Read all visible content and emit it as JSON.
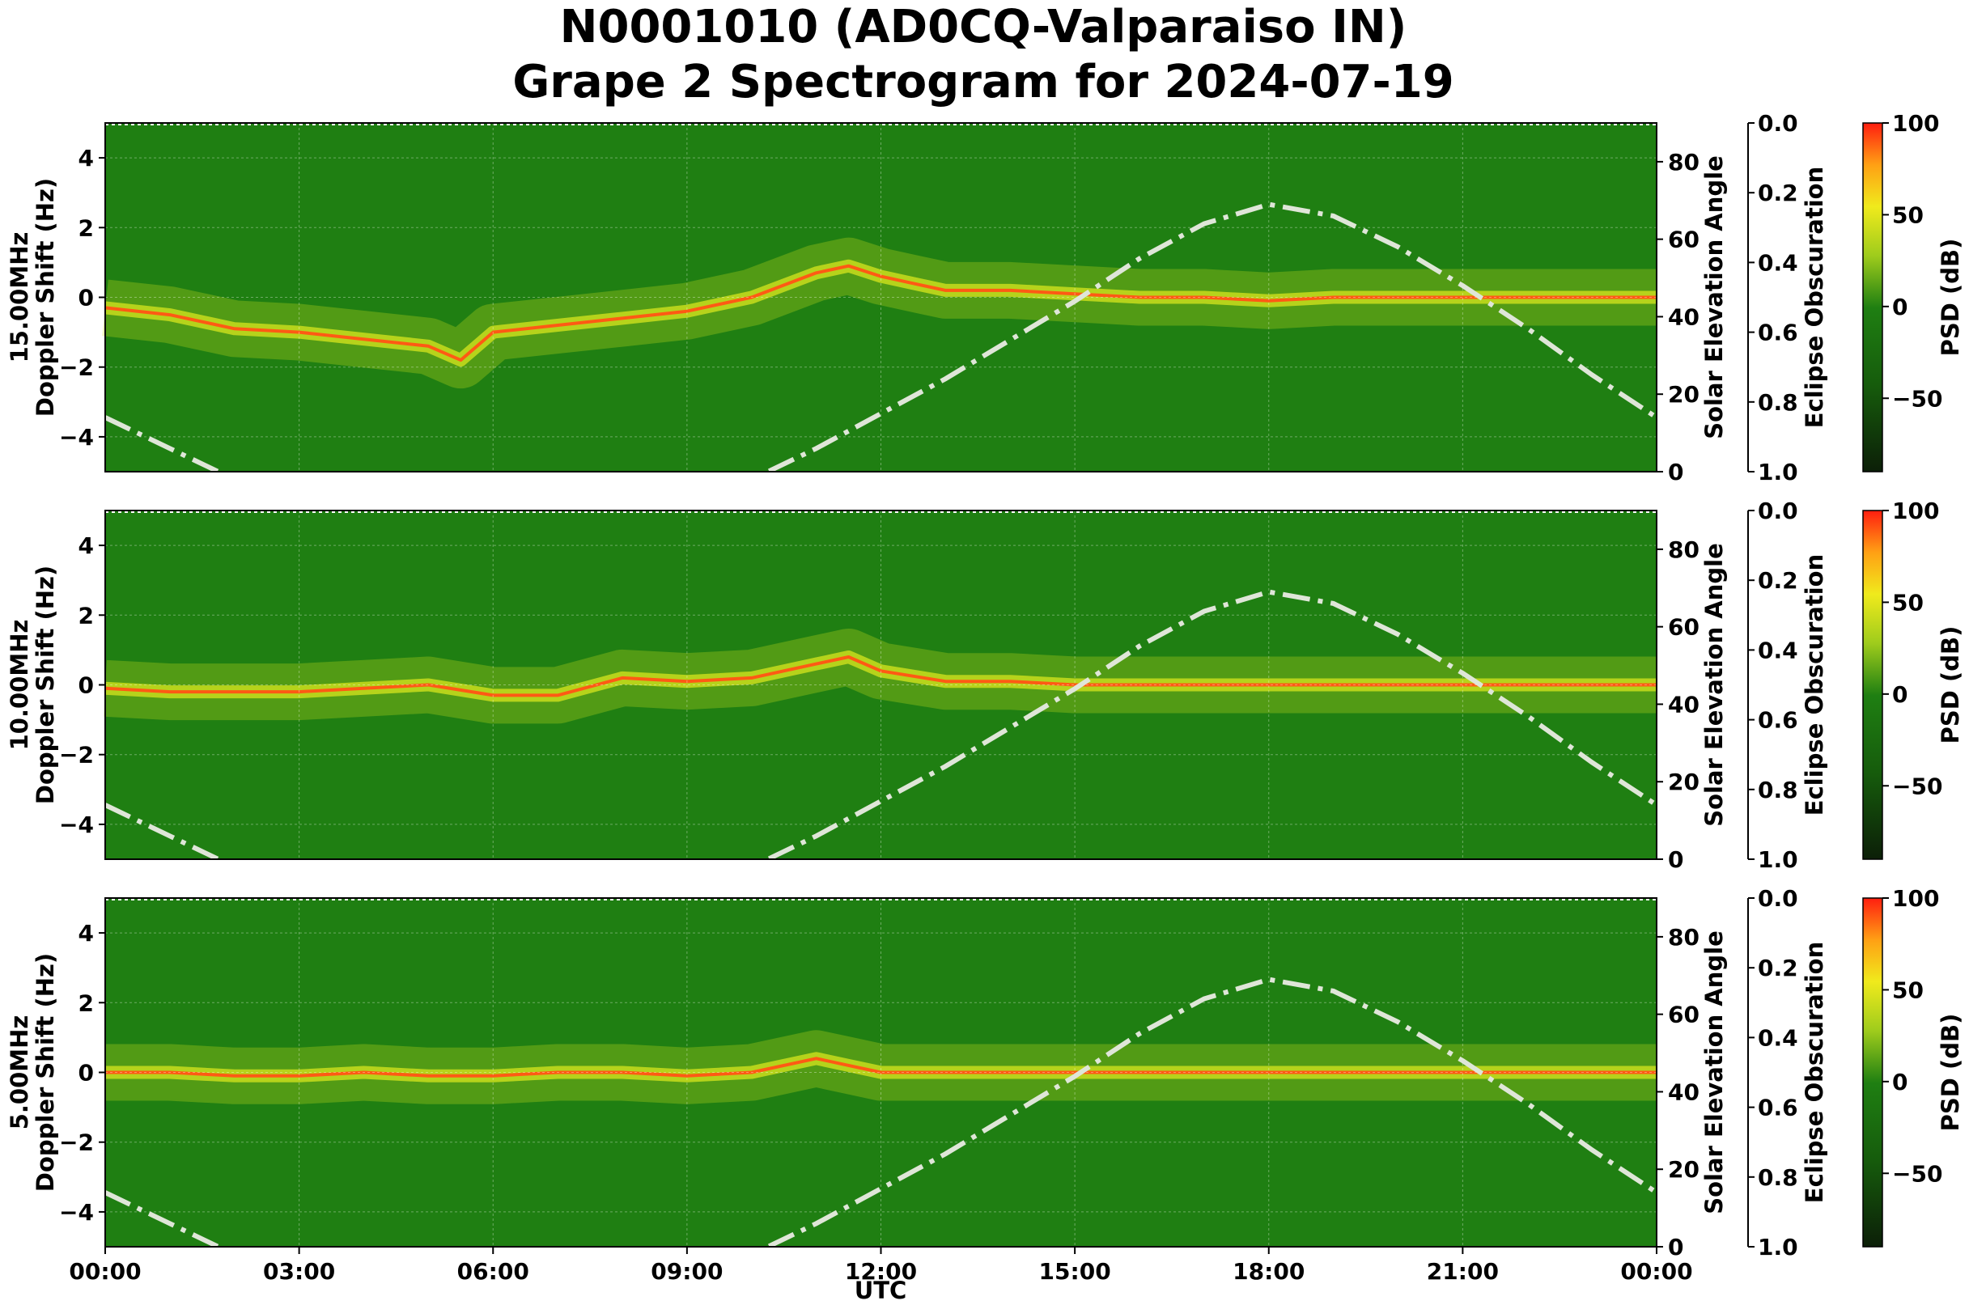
{
  "title_line1": "N0001010 (AD0CQ-Valparaiso IN)",
  "title_line2": "Grape 2 Spectrogram for 2024-07-19",
  "xlabel": "UTC",
  "x_ticks": [
    "00:00",
    "03:00",
    "06:00",
    "09:00",
    "12:00",
    "15:00",
    "18:00",
    "21:00",
    "00:00"
  ],
  "doppler_axis_label": "Doppler Shift (Hz)",
  "elevation_axis_label": "Solar Elevation Angle",
  "eclipse_axis_label": "Eclipse Obscuration",
  "colorbar_label": "PSD (dB)",
  "doppler_ticks": [
    "4",
    "2",
    "0",
    "−2",
    "−4"
  ],
  "elevation_ticks": [
    "80",
    "60",
    "40",
    "20",
    "0"
  ],
  "eclipse_ticks": [
    "0.0",
    "0.2",
    "0.4",
    "0.6",
    "0.8",
    "1.0"
  ],
  "colorbar_ticks": [
    "100",
    "50",
    "0",
    "−50"
  ],
  "colors": {
    "background_green": "#1f7f12",
    "signal_yellow": "#d8e61e",
    "peak_orange": "#ff5a14",
    "elevation_curve": "#dfe6d8"
  },
  "chart_data": [
    {
      "type": "heatmap",
      "name": "15.00MHz",
      "panel_label": "15.00MHz",
      "xlim_hours": [
        0,
        24
      ],
      "ylim_hz": [
        -5,
        5
      ],
      "elevation_range_deg": [
        0,
        90
      ],
      "eclipse_range": [
        0.0,
        1.0
      ],
      "psd_range_db": [
        -90,
        100
      ],
      "grid": true,
      "trace_hz": [
        [
          0,
          -0.3
        ],
        [
          1,
          -0.5
        ],
        [
          2,
          -0.9
        ],
        [
          3,
          -1.0
        ],
        [
          4,
          -1.2
        ],
        [
          5,
          -1.4
        ],
        [
          5.5,
          -1.8
        ],
        [
          6,
          -1.0
        ],
        [
          7,
          -0.8
        ],
        [
          8,
          -0.6
        ],
        [
          9,
          -0.4
        ],
        [
          10,
          0.0
        ],
        [
          11,
          0.7
        ],
        [
          11.5,
          0.9
        ],
        [
          12,
          0.6
        ],
        [
          12.5,
          0.4
        ],
        [
          13,
          0.2
        ],
        [
          14,
          0.2
        ],
        [
          15,
          0.1
        ],
        [
          16,
          0.0
        ],
        [
          17,
          0.0
        ],
        [
          18,
          -0.1
        ],
        [
          19,
          0.0
        ],
        [
          20,
          0.0
        ],
        [
          21,
          0.0
        ],
        [
          22,
          0.0
        ],
        [
          23,
          0.0
        ],
        [
          24,
          0.0
        ]
      ],
      "solar_elevation_deg": [
        [
          0,
          14
        ],
        [
          1,
          6
        ],
        [
          2,
          -2
        ],
        [
          10,
          -2
        ],
        [
          11,
          6
        ],
        [
          12,
          15
        ],
        [
          13,
          24
        ],
        [
          14,
          34
        ],
        [
          15,
          44
        ],
        [
          16,
          55
        ],
        [
          17,
          64
        ],
        [
          18,
          69
        ],
        [
          19,
          66
        ],
        [
          20,
          58
        ],
        [
          21,
          48
        ],
        [
          22,
          37
        ],
        [
          23,
          25
        ],
        [
          24,
          14
        ]
      ]
    },
    {
      "type": "heatmap",
      "name": "10.00MHz",
      "panel_label": "10.00MHz",
      "xlim_hours": [
        0,
        24
      ],
      "ylim_hz": [
        -5,
        5
      ],
      "elevation_range_deg": [
        0,
        90
      ],
      "eclipse_range": [
        0.0,
        1.0
      ],
      "psd_range_db": [
        -90,
        100
      ],
      "grid": true,
      "trace_hz": [
        [
          0,
          -0.1
        ],
        [
          1,
          -0.2
        ],
        [
          2,
          -0.2
        ],
        [
          3,
          -0.2
        ],
        [
          4,
          -0.1
        ],
        [
          5,
          0.0
        ],
        [
          6,
          -0.3
        ],
        [
          7,
          -0.3
        ],
        [
          8,
          0.2
        ],
        [
          9,
          0.1
        ],
        [
          10,
          0.2
        ],
        [
          11,
          0.6
        ],
        [
          11.5,
          0.8
        ],
        [
          12,
          0.4
        ],
        [
          13,
          0.1
        ],
        [
          14,
          0.1
        ],
        [
          15,
          0.0
        ],
        [
          16,
          0.0
        ],
        [
          17,
          0.0
        ],
        [
          18,
          0.0
        ],
        [
          19,
          0.0
        ],
        [
          20,
          0.0
        ],
        [
          21,
          0.0
        ],
        [
          22,
          0.0
        ],
        [
          23,
          0.0
        ],
        [
          24,
          0.0
        ]
      ],
      "solar_elevation_deg": [
        [
          0,
          14
        ],
        [
          1,
          6
        ],
        [
          2,
          -2
        ],
        [
          10,
          -2
        ],
        [
          11,
          6
        ],
        [
          12,
          15
        ],
        [
          13,
          24
        ],
        [
          14,
          34
        ],
        [
          15,
          44
        ],
        [
          16,
          55
        ],
        [
          17,
          64
        ],
        [
          18,
          69
        ],
        [
          19,
          66
        ],
        [
          20,
          58
        ],
        [
          21,
          48
        ],
        [
          22,
          37
        ],
        [
          23,
          25
        ],
        [
          24,
          14
        ]
      ]
    },
    {
      "type": "heatmap",
      "name": "5.00MHz",
      "panel_label": "5.00MHz",
      "xlim_hours": [
        0,
        24
      ],
      "ylim_hz": [
        -5,
        5
      ],
      "elevation_range_deg": [
        0,
        90
      ],
      "eclipse_range": [
        0.0,
        1.0
      ],
      "psd_range_db": [
        -90,
        100
      ],
      "grid": true,
      "trace_hz": [
        [
          0,
          0.0
        ],
        [
          1,
          0.0
        ],
        [
          2,
          -0.1
        ],
        [
          3,
          -0.1
        ],
        [
          4,
          0.0
        ],
        [
          5,
          -0.1
        ],
        [
          6,
          -0.1
        ],
        [
          7,
          0.0
        ],
        [
          8,
          0.0
        ],
        [
          9,
          -0.1
        ],
        [
          10,
          0.0
        ],
        [
          11,
          0.4
        ],
        [
          11.5,
          0.2
        ],
        [
          12,
          0.0
        ],
        [
          24,
          0.0
        ]
      ],
      "solar_elevation_deg": [
        [
          0,
          14
        ],
        [
          1,
          6
        ],
        [
          2,
          -2
        ],
        [
          10,
          -2
        ],
        [
          11,
          6
        ],
        [
          12,
          15
        ],
        [
          13,
          24
        ],
        [
          14,
          34
        ],
        [
          15,
          44
        ],
        [
          16,
          55
        ],
        [
          17,
          64
        ],
        [
          18,
          69
        ],
        [
          19,
          66
        ],
        [
          20,
          58
        ],
        [
          21,
          48
        ],
        [
          22,
          37
        ],
        [
          23,
          25
        ],
        [
          24,
          14
        ]
      ]
    }
  ]
}
